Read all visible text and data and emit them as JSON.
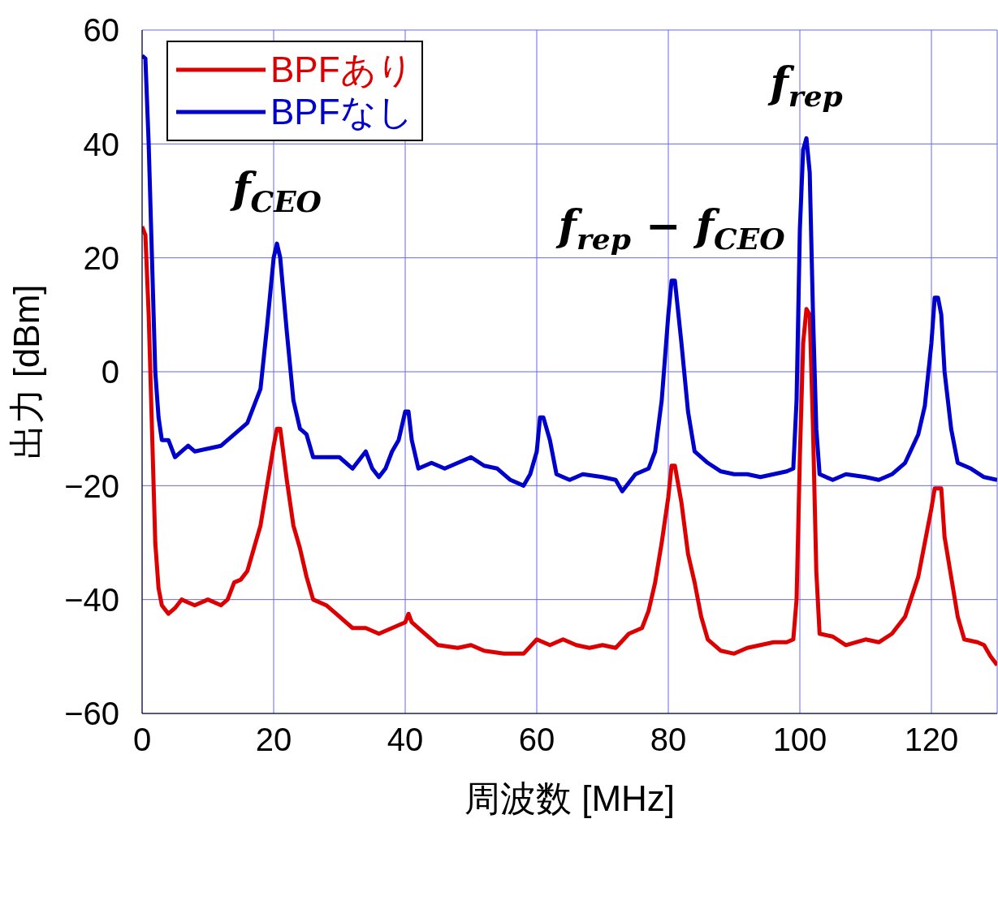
{
  "chart_data": {
    "type": "line",
    "xlabel": "周波数 [MHz]",
    "ylabel": "出力 [dBm]",
    "xlim": [
      0,
      130
    ],
    "xticks": [
      0,
      20,
      40,
      60,
      80,
      100,
      120
    ],
    "ylim": [
      -60,
      60
    ],
    "yticks": [
      -60,
      -40,
      -20,
      0,
      20,
      40,
      60
    ],
    "grid": true,
    "legend": "top left",
    "line_style": "solid",
    "marker": "none",
    "series": [
      {
        "name": "BPFあり",
        "color": "#dd0000",
        "x": [
          0,
          0.5,
          1,
          1.5,
          2,
          2.5,
          3,
          4,
          5,
          6,
          7,
          8,
          10,
          12,
          13,
          14,
          15,
          16,
          17,
          18,
          19,
          20,
          20.5,
          21,
          22,
          23,
          24,
          25,
          26,
          28,
          30,
          32,
          34,
          36,
          38,
          40,
          40.5,
          41,
          43,
          45,
          48,
          50,
          52,
          55,
          58,
          60,
          62,
          64,
          66,
          68,
          70,
          72,
          74,
          76,
          77,
          78,
          79,
          80,
          80.5,
          81,
          82,
          83,
          84,
          85,
          86,
          88,
          90,
          92,
          94,
          96,
          98,
          99,
          99.5,
          100,
          100.5,
          101,
          101.5,
          102,
          102.5,
          103,
          105,
          107,
          110,
          112,
          114,
          116,
          118,
          119,
          120,
          120.5,
          121.5,
          122,
          123,
          124,
          125,
          127,
          128,
          129,
          130
        ],
        "values": [
          25.5,
          24,
          10,
          -10,
          -30,
          -38,
          -41,
          -42.5,
          -41.5,
          -40,
          -40.5,
          -41,
          -40,
          -41,
          -40,
          -37,
          -36.5,
          -35,
          -31,
          -27,
          -20,
          -13,
          -10,
          -10,
          -19,
          -27,
          -31,
          -36,
          -40,
          -41,
          -43,
          -45,
          -45,
          -46,
          -45,
          -44,
          -42.5,
          -44,
          -46,
          -48,
          -48.5,
          -48,
          -49,
          -49.5,
          -49.5,
          -47,
          -48,
          -47,
          -48,
          -48.5,
          -48,
          -48.5,
          -46,
          -45,
          -42,
          -37,
          -30,
          -22,
          -16.5,
          -16.5,
          -23,
          -32,
          -37,
          -43,
          -47,
          -49,
          -49.5,
          -48.5,
          -48,
          -47.5,
          -47.5,
          -47,
          -40,
          -15,
          5,
          11,
          10,
          -10,
          -35,
          -46,
          -46.5,
          -48,
          -47,
          -47.5,
          -46,
          -43,
          -36,
          -30,
          -24,
          -20.5,
          -20.5,
          -29,
          -36,
          -43,
          -47,
          -47.5,
          -48,
          -50,
          -51.5
        ]
      },
      {
        "name": "BPFなし",
        "color": "#0000cc",
        "x": [
          0,
          0.5,
          1,
          1.5,
          2,
          2.5,
          3,
          4,
          5,
          6,
          7,
          8,
          10,
          12,
          14,
          15,
          16,
          17,
          18,
          19,
          20,
          20.5,
          21,
          22,
          23,
          24,
          25,
          26,
          28,
          30,
          32,
          34,
          35,
          36,
          37,
          38,
          39,
          40,
          40.5,
          41,
          42,
          44,
          46,
          48,
          50,
          52,
          54,
          56,
          58,
          59,
          60,
          60.5,
          61,
          62,
          63,
          65,
          67,
          70,
          72,
          73,
          75,
          77,
          78,
          79,
          80,
          80.5,
          81,
          82,
          83,
          84,
          86,
          88,
          90,
          92,
          94,
          96,
          98,
          99,
          99.5,
          100,
          100.5,
          101,
          101.5,
          102,
          102.5,
          103,
          105,
          107,
          110,
          112,
          114,
          116,
          118,
          119,
          120,
          120.5,
          121,
          121.5,
          122,
          123,
          124,
          126,
          128,
          130
        ],
        "values": [
          55.5,
          55,
          40,
          20,
          0,
          -8,
          -12,
          -12,
          -15,
          -14,
          -13,
          -14,
          -13.5,
          -13,
          -11,
          -10,
          -9,
          -6,
          -3,
          8,
          20,
          22.5,
          20,
          7,
          -5,
          -10,
          -11,
          -15,
          -15,
          -15,
          -17,
          -14,
          -17,
          -18.5,
          -17,
          -14,
          -12,
          -7,
          -7,
          -12,
          -17,
          -16,
          -17,
          -16,
          -15,
          -16.5,
          -17,
          -19,
          -20,
          -18,
          -14,
          -8,
          -8,
          -12,
          -18,
          -19,
          -18,
          -18.5,
          -19,
          -21,
          -18,
          -17,
          -14,
          -5,
          10,
          16,
          16,
          5,
          -7,
          -14,
          -16,
          -17.5,
          -18,
          -18,
          -18.5,
          -18,
          -17.5,
          -17,
          -5,
          25,
          39,
          41,
          35,
          10,
          -10,
          -18,
          -19,
          -18,
          -18.5,
          -19,
          -18,
          -16,
          -11,
          -6,
          5,
          13,
          13,
          10,
          0,
          -10,
          -16,
          -17,
          -18.5,
          -19
        ]
      }
    ],
    "annotations": [
      {
        "text": "f$_{CEO}$",
        "x": 20.5,
        "y": 22.5
      },
      {
        "text": "f$_{rep}$ − f$_{CEO}$",
        "x": 80.5,
        "y": 16
      },
      {
        "text": "f$_{rep}$",
        "x": 101,
        "y": 41
      }
    ]
  }
}
